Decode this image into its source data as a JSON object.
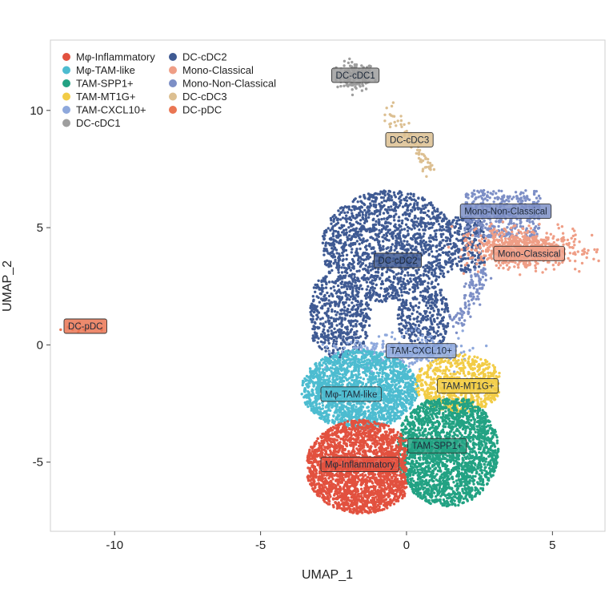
{
  "chart_data": {
    "type": "scatter",
    "title": "",
    "xlabel": "UMAP_1",
    "ylabel": "UMAP_2",
    "xlim": [
      -12.2,
      6.8
    ],
    "ylim": [
      -7.95,
      13.0
    ],
    "xticks": [
      -10,
      -5,
      0,
      5
    ],
    "yticks": [
      -5,
      0,
      5,
      10
    ],
    "grid": false,
    "legend_position": "top-left",
    "series": [
      {
        "name": "Mφ-Inflammatory",
        "color": "#e2513f",
        "label_x": -1.6,
        "label_y": -5.1
      },
      {
        "name": "Mφ-TAM-like",
        "color": "#4dbcd0",
        "label_x": -1.9,
        "label_y": -2.1
      },
      {
        "name": "TAM-SPP1+",
        "color": "#22a283",
        "label_x": 1.05,
        "label_y": -4.3
      },
      {
        "name": "TAM-MT1G+",
        "color": "#f2cc46",
        "label_x": 2.1,
        "label_y": -1.75
      },
      {
        "name": "TAM-CXCL10+",
        "color": "#8ea8dc",
        "label_x": 0.5,
        "label_y": -0.25
      },
      {
        "name": "DC-cDC1",
        "color": "#9e9e9e",
        "label_x": -1.75,
        "label_y": 11.5
      },
      {
        "name": "DC-cDC2",
        "color": "#3f5a93",
        "label_x": -0.3,
        "label_y": 3.6
      },
      {
        "name": "Mono-Classical",
        "color": "#ef9e86",
        "label_x": 4.2,
        "label_y": 3.9
      },
      {
        "name": "Mono-Non-Classical",
        "color": "#7d8fc6",
        "label_x": 3.4,
        "label_y": 5.7
      },
      {
        "name": "DC-cDC3",
        "color": "#dcbf91",
        "label_x": 0.1,
        "label_y": 8.75
      },
      {
        "name": "DC-pDC",
        "color": "#ea7653",
        "label_x": -11.0,
        "label_y": 0.8
      }
    ]
  }
}
